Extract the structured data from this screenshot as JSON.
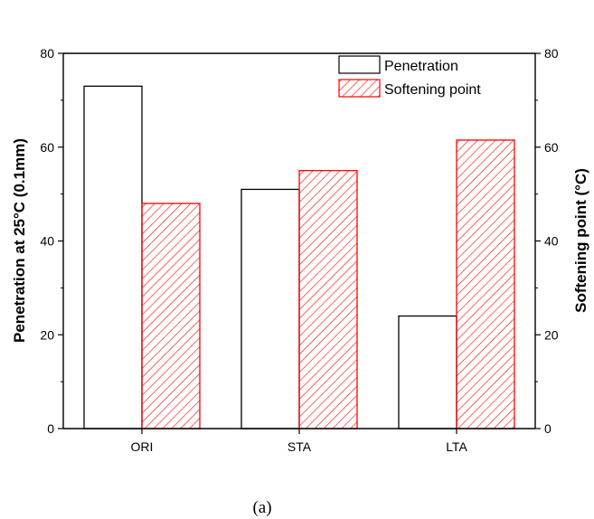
{
  "chart_data": {
    "type": "bar",
    "categories": [
      "ORI",
      "STA",
      "LTA"
    ],
    "series": [
      {
        "name": "Penetration",
        "axis": "left",
        "values": [
          73,
          51,
          24
        ],
        "fill": "#ffffff",
        "stroke": "#000000"
      },
      {
        "name": "Softening point",
        "axis": "right",
        "values": [
          48,
          55,
          61.5
        ],
        "fill": "hatch",
        "stroke": "#ff0000"
      }
    ],
    "ylabel": "Penetration at 25°C (0.1mm)",
    "ylabel_right": "Softening point (°C)",
    "ylim": [
      0,
      80
    ],
    "ylim_right": [
      0,
      80
    ],
    "yticks": [
      "0",
      "20",
      "40",
      "60",
      "80"
    ],
    "yticks_right": [
      "0",
      "20",
      "40",
      "60",
      "80"
    ],
    "legend_position": "top-right",
    "grid": false
  },
  "caption": "(a)",
  "colors": {
    "hatch": "#ff0000",
    "axis": "#000000"
  }
}
